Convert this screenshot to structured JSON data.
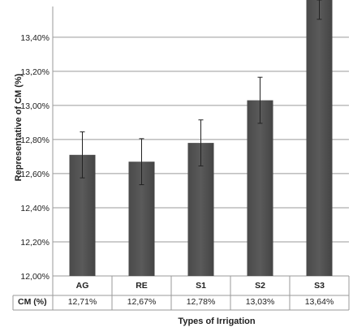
{
  "chart_data": {
    "type": "bar",
    "categories": [
      "AG",
      "RE",
      "S1",
      "S2",
      "S3"
    ],
    "series": [
      {
        "values": [
          12.71,
          12.67,
          12.78,
          13.03,
          13.64
        ],
        "error": [
          0.135,
          0.135,
          0.135,
          0.135,
          0.135
        ]
      }
    ],
    "ylabel": "Representative of CM (%)",
    "xlabel": "Types of Irrigation",
    "ylim": [
      12.0,
      13.58
    ],
    "yticks": [
      "12,00%",
      "12,20%",
      "12,40%",
      "12,60%",
      "12,80%",
      "13,00%",
      "13,20%",
      "13,40%"
    ],
    "ytick_values": [
      12.0,
      12.2,
      12.4,
      12.6,
      12.8,
      13.0,
      13.2,
      13.4
    ],
    "grid": true,
    "bar_color": "#5a5a5a",
    "table": {
      "row_label": "CM (%)",
      "cells": [
        "12,71%",
        "12,67%",
        "12,78%",
        "13,03%",
        "13,64%"
      ]
    }
  }
}
